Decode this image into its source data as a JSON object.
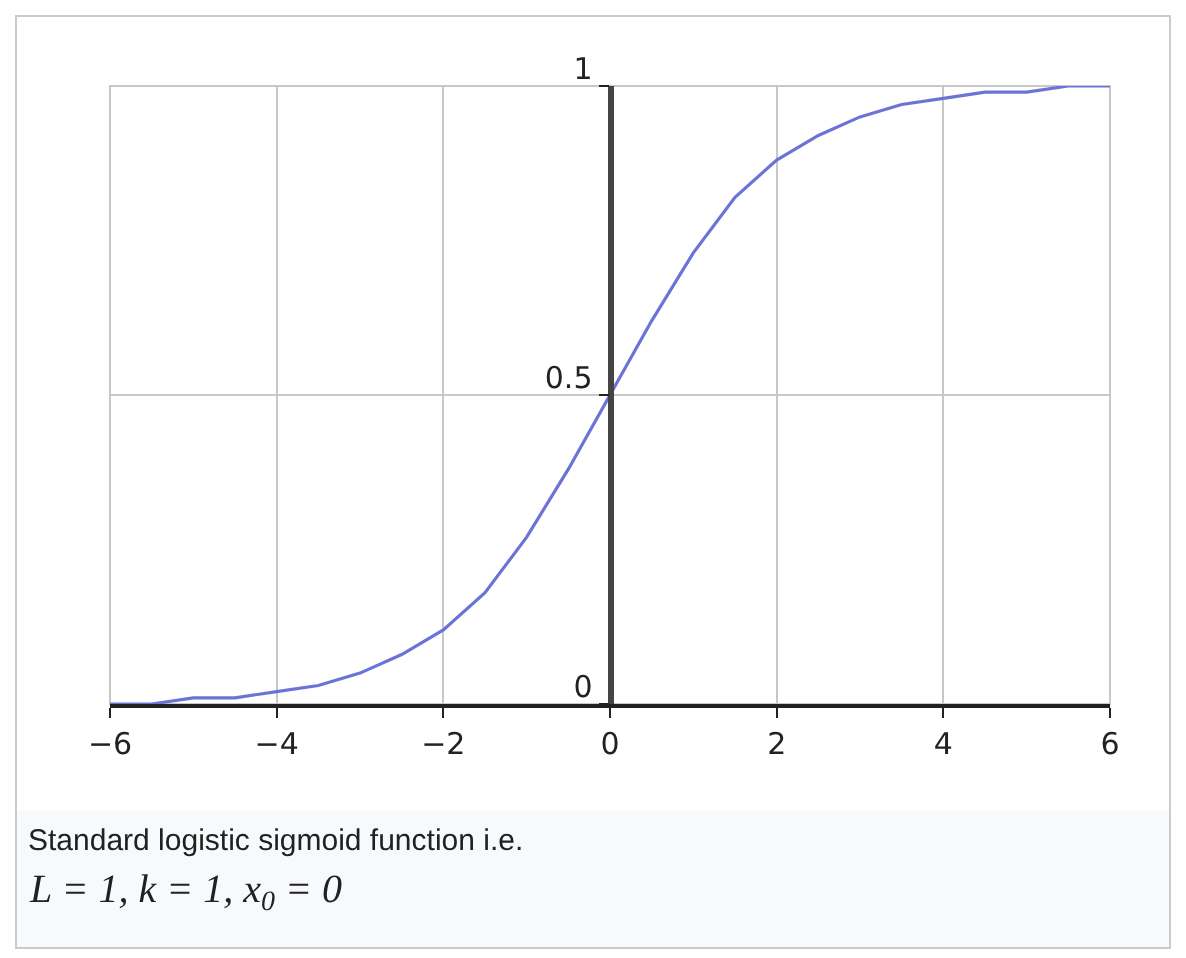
{
  "chart_data": {
    "type": "line",
    "x": [
      -6,
      -5.5,
      -5,
      -4.5,
      -4,
      -3.5,
      -3,
      -2.5,
      -2,
      -1.5,
      -1,
      -0.5,
      0,
      0.5,
      1,
      1.5,
      2,
      2.5,
      3,
      3.5,
      4,
      4.5,
      5,
      5.5,
      6
    ],
    "series": [
      {
        "color": "#6b74d6",
        "values": [
          0.0,
          0.0,
          0.01,
          0.01,
          0.02,
          0.03,
          0.05,
          0.08,
          0.12,
          0.18,
          0.27,
          0.38,
          0.5,
          0.62,
          0.73,
          0.82,
          0.88,
          0.92,
          0.95,
          0.97,
          0.98,
          0.99,
          0.99,
          1.0,
          1.0
        ]
      }
    ],
    "xlim": [
      -6,
      6
    ],
    "ylim": [
      0,
      1
    ],
    "xticks": [
      {
        "value": -6,
        "label": "−6"
      },
      {
        "value": -4,
        "label": "−4"
      },
      {
        "value": -2,
        "label": "−2"
      },
      0,
      2,
      4,
      6
    ],
    "yticks": [
      0,
      0.5,
      1
    ],
    "grid": true,
    "marker": "none",
    "line_style": "solid",
    "annotations": [
      "Standard logistic sigmoid function i.e.",
      "L = 1, k = 1, x$_{0}$ = 0"
    ]
  }
}
